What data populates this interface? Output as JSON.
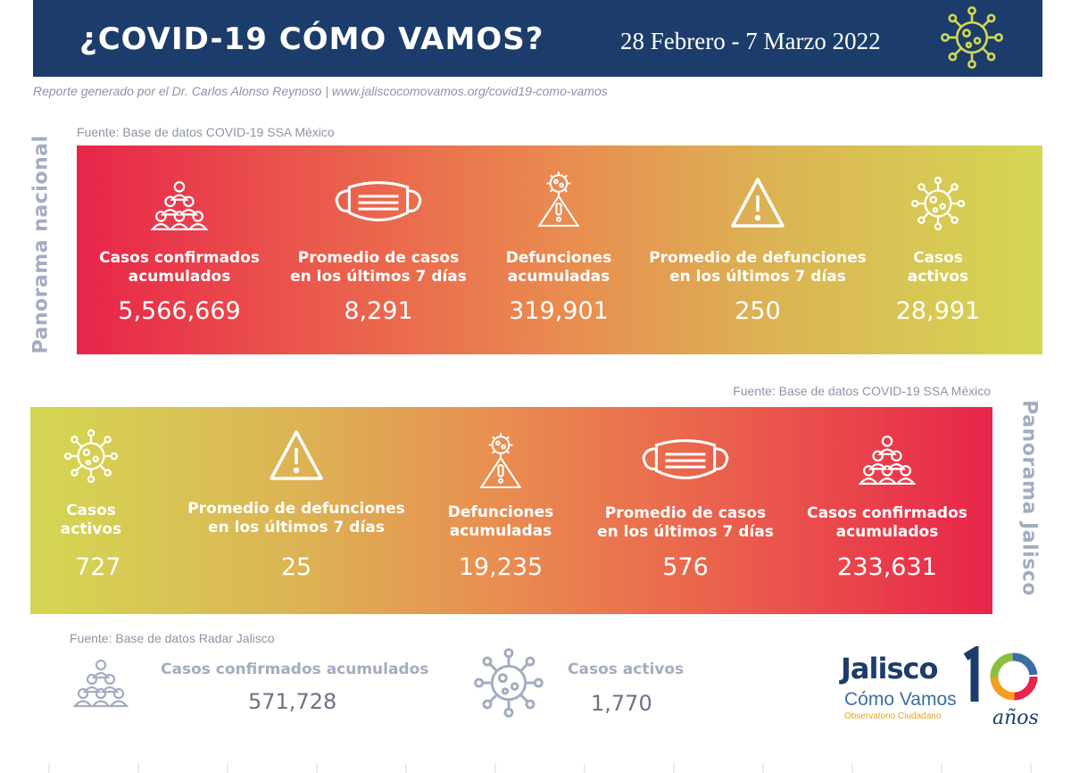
{
  "header": {
    "title": "¿COVID-19 CÓMO VAMOS?",
    "dates": "28 Febrero - 7 Marzo 2022",
    "icon": "virus-icon",
    "bg_color": "#1c3d6b"
  },
  "report_line": "Reporte generado por el Dr. Carlos Alonso Reynoso | www.jaliscocomovamos.org/covid19-como-vamos",
  "nacional": {
    "side_label": "Panorama nacional",
    "source": "Fuente: Base de datos COVID-19 SSA México",
    "stats": [
      {
        "icon": "people-group-icon",
        "label_1": "Casos confirmados",
        "label_2": "acumulados",
        "value": "5,566,669"
      },
      {
        "icon": "face-mask-icon",
        "label_1": "Promedio de casos",
        "label_2": "en los últimos 7 días",
        "value": "8,291"
      },
      {
        "icon": "virus-warning-icon",
        "label_1": "Defunciones",
        "label_2": "acumuladas",
        "value": "319,901"
      },
      {
        "icon": "warning-triangle-icon",
        "label_1": "Promedio de defunciones",
        "label_2": "en los últimos 7 días",
        "value": "250"
      },
      {
        "icon": "virus-icon",
        "label_1": "Casos",
        "label_2": "activos",
        "value": "28,991"
      }
    ]
  },
  "jalisco": {
    "side_label": "Panorama Jalisco",
    "source": "Fuente: Base de datos COVID-19 SSA México",
    "stats": [
      {
        "icon": "virus-icon",
        "label_1": "Casos",
        "label_2": "activos",
        "value": "727"
      },
      {
        "icon": "warning-triangle-icon",
        "label_1": "Promedio de defunciones",
        "label_2": "en los últimos 7 días",
        "value": "25"
      },
      {
        "icon": "virus-warning-icon",
        "label_1": "Defunciones",
        "label_2": "acumuladas",
        "value": "19,235"
      },
      {
        "icon": "face-mask-icon",
        "label_1": "Promedio de casos",
        "label_2": "en los últimos 7 días",
        "value": "576"
      },
      {
        "icon": "people-group-icon",
        "label_1": "Casos confirmados",
        "label_2": "acumulados",
        "value": "233,631"
      }
    ]
  },
  "radar": {
    "source": "Fuente: Base de datos Radar Jalisco",
    "stats": [
      {
        "icon": "people-group-icon",
        "label": "Casos confirmados acumulados",
        "value": "571,728"
      },
      {
        "icon": "virus-icon",
        "label": "Casos activos",
        "value": "1,770"
      }
    ]
  },
  "logo": {
    "line1": "Jalisco",
    "line2": "Cómo Vamos",
    "line3": "Observatorio Ciudadano",
    "anniversary": "10",
    "anniversary_word": "años"
  },
  "colors": {
    "navy": "#1c3d6b",
    "grey_text": "#a3acc0",
    "gradient_red": "#e8254a",
    "gradient_orange": "#e98b50",
    "gradient_lime": "#d4d753"
  }
}
